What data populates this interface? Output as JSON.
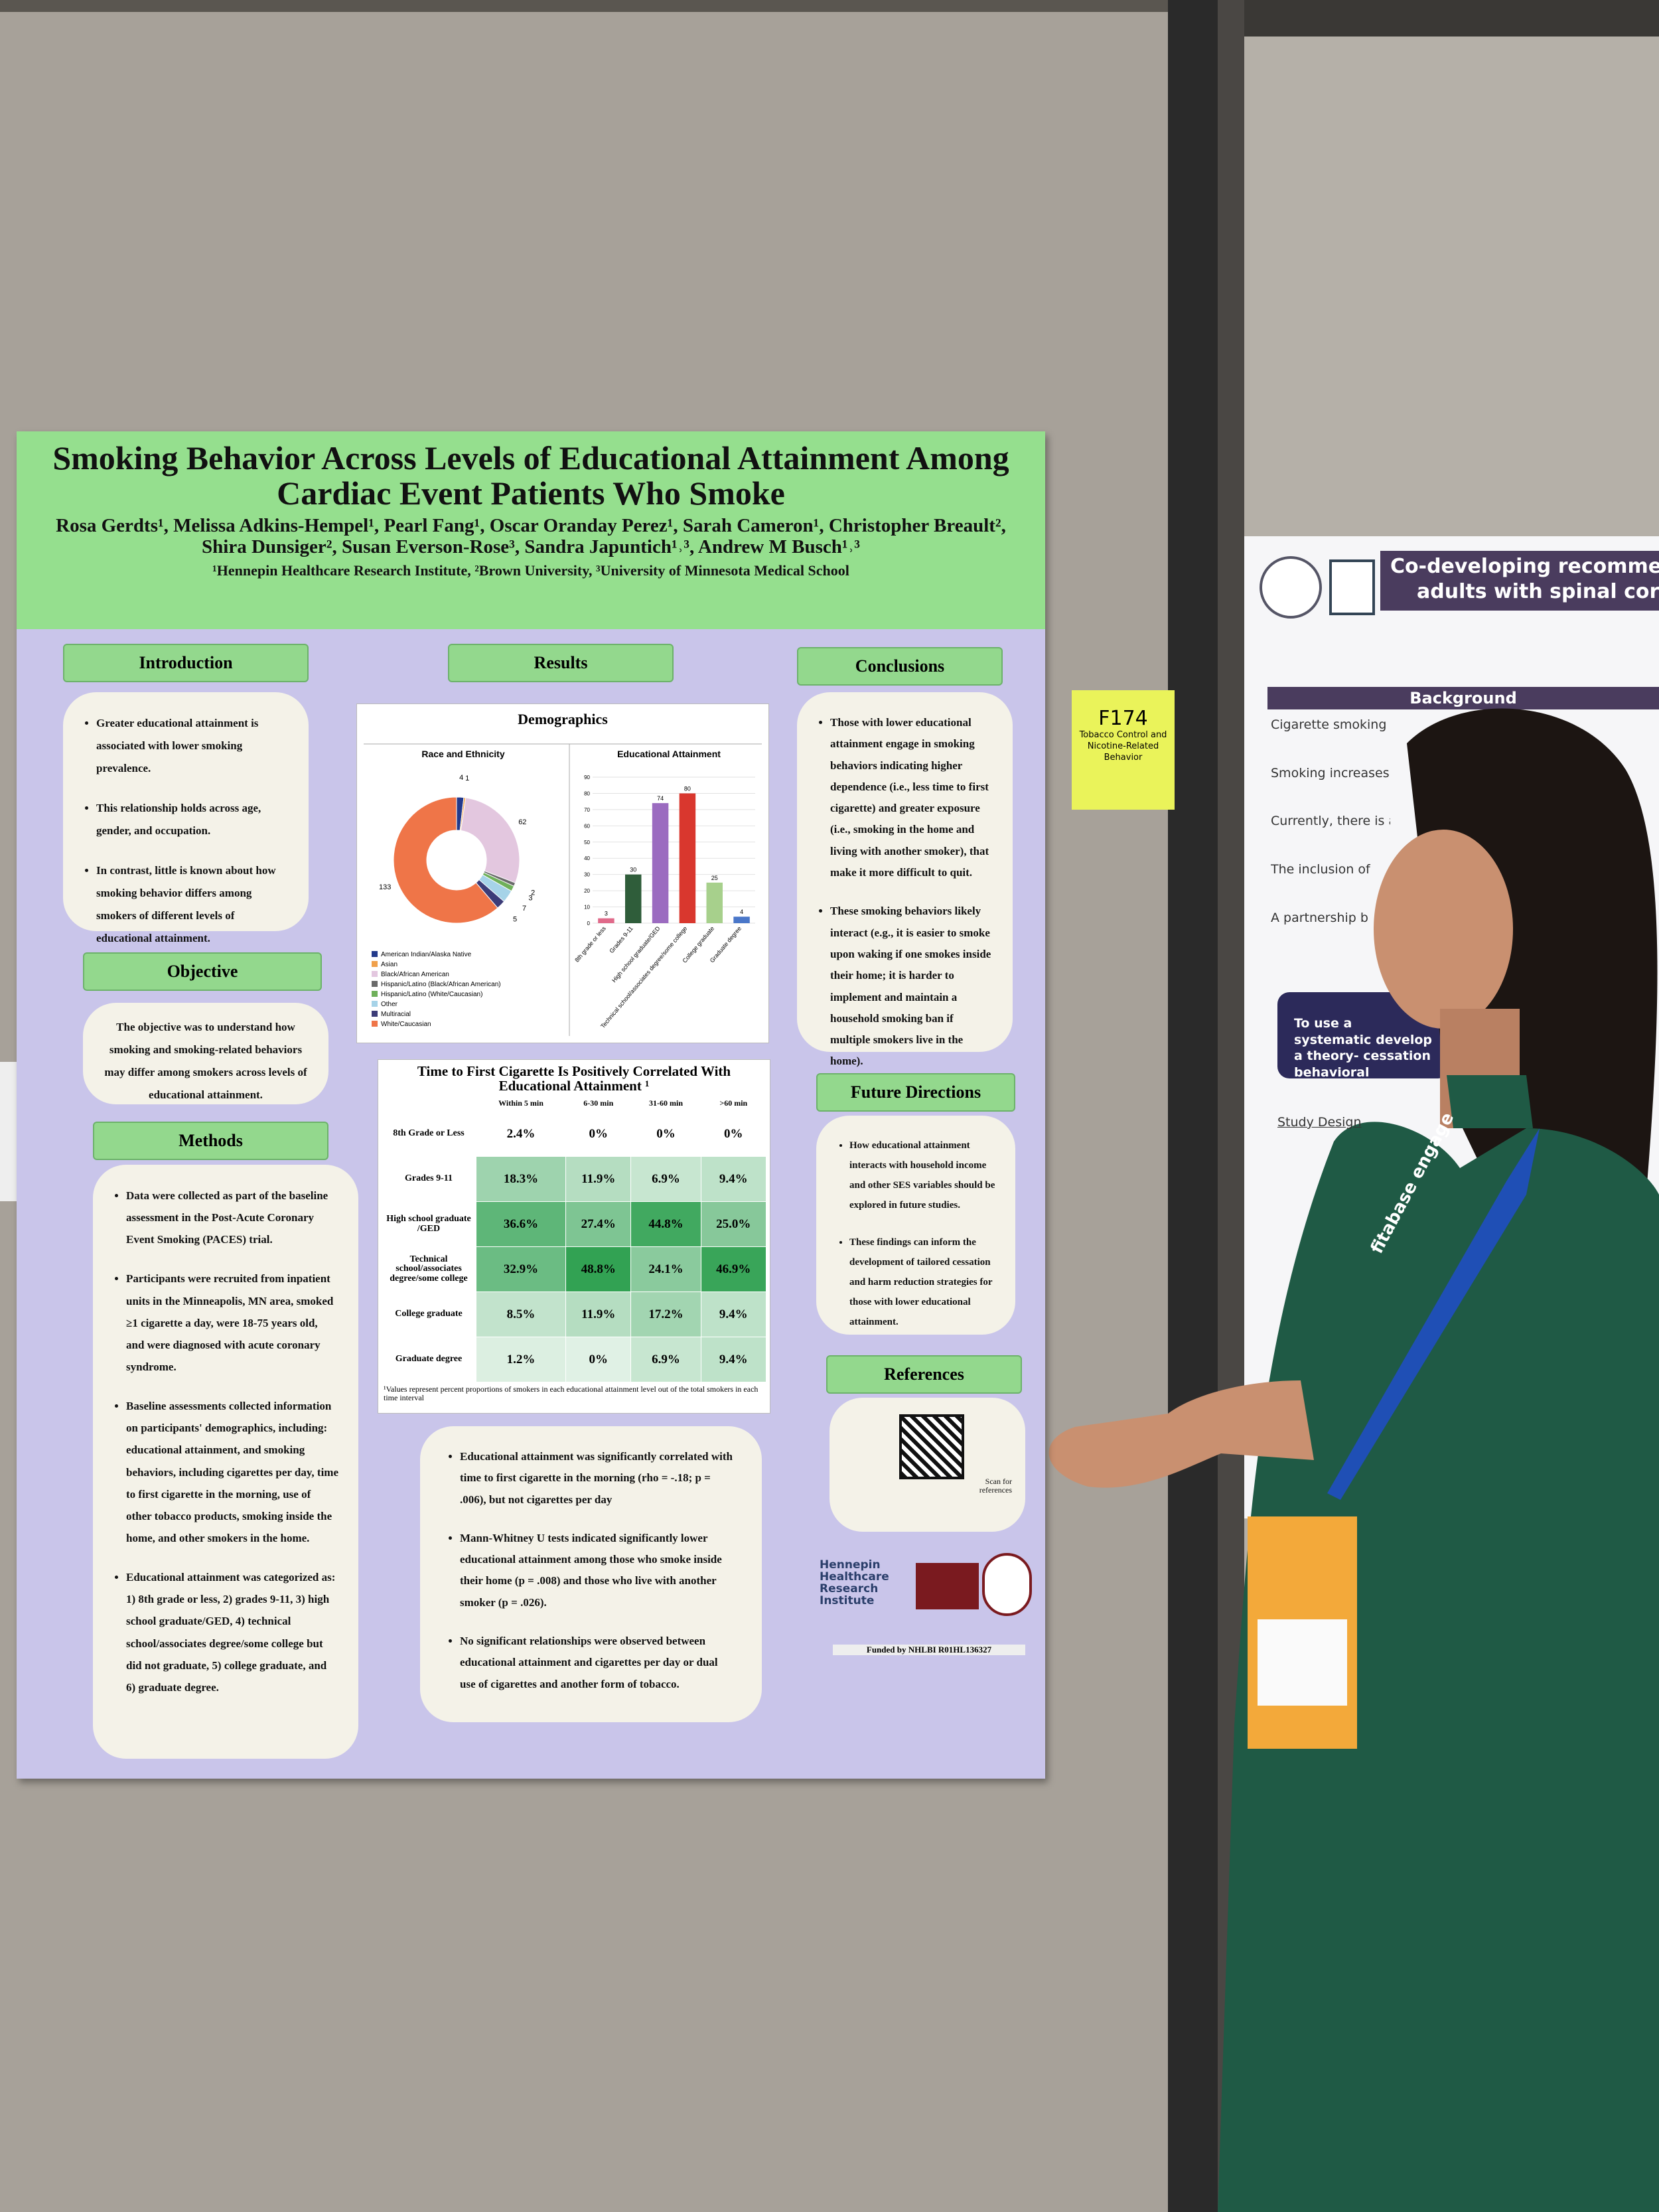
{
  "poster": {
    "title": "Smoking Behavior Across Levels of Educational Attainment Among Cardiac Event Patients Who Smoke",
    "authors": "Rosa Gerdts¹, Melissa Adkins-Hempel¹, Pearl Fang¹, Oscar Oranday Perez¹, Sarah Cameron¹, Christopher Breault², Shira Dunsiger², Susan Everson-Rose³, Sandra Japuntich¹˒³, Andrew M Busch¹˒³",
    "affiliations": "¹Hennepin Healthcare Research Institute, ²Brown University, ³University of Minnesota Medical School",
    "introduction": {
      "heading": "Introduction",
      "bullets": [
        "Greater educational attainment is associated with lower smoking prevalence.",
        "This relationship holds across age, gender, and occupation.",
        "In contrast, little is known about how smoking behavior differs among smokers of different levels of educational attainment."
      ]
    },
    "objective": {
      "heading": "Objective",
      "text": "The objective was to understand how smoking and smoking-related behaviors may differ among smokers across levels of educational attainment."
    },
    "methods": {
      "heading": "Methods",
      "bullets": [
        "Data were collected as part of the baseline assessment in the Post-Acute Coronary Event Smoking (PACES) trial.",
        "Participants were recruited from inpatient units in the Minneapolis, MN area, smoked ≥1 cigarette a day, were 18-75 years old, and were diagnosed with acute coronary syndrome.",
        "Baseline assessments collected information on participants' demographics, including: educational attainment, and smoking behaviors, including cigarettes per day, time to first cigarette in the morning, use of other tobacco products, smoking inside the home, and other smokers in the home.",
        "Educational attainment was categorized as: 1) 8th grade or less, 2) grades 9-11, 3) high school graduate/GED, 4) technical school/associates degree/some college but did not graduate, 5) college graduate, and 6) graduate degree."
      ]
    },
    "results": {
      "heading": "Results",
      "demographics": {
        "title": "Demographics",
        "race_chart": {
          "type": "pie",
          "title": "Race and Ethnicity",
          "categories": [
            "American Indian/Alaska Native",
            "Asian",
            "Black/African American",
            "Hispanic/Latino (Black/African American)",
            "Hispanic/Latino (White/Caucasian)",
            "Other",
            "Multiracial",
            "White/Caucasian"
          ],
          "values": [
            4,
            1,
            62,
            2,
            3,
            7,
            5,
            133
          ],
          "colors": [
            "#233a8b",
            "#f0a04b",
            "#e3c7df",
            "#6a6a6a",
            "#6fb05a",
            "#a6d3e8",
            "#3c3c78",
            "#ef7548"
          ]
        },
        "education_chart": {
          "type": "bar",
          "title": "Educational Attainment",
          "categories": [
            "8th grade or less",
            "Grades 9-11",
            "High school graduate/GED",
            "Technical school/associates degree/some college",
            "College graduate",
            "Graduate degree"
          ],
          "values": [
            3,
            30,
            74,
            80,
            25,
            4
          ],
          "colors": [
            "#e06a8a",
            "#2f5d3a",
            "#9b6bc0",
            "#d9372e",
            "#a7d08c",
            "#4a77c9"
          ],
          "ylim": [
            0,
            90
          ],
          "yticks": [
            0,
            10,
            20,
            30,
            40,
            50,
            60,
            70,
            80,
            90
          ],
          "grid": true
        }
      },
      "table": {
        "title": "Time to First Cigarette Is Positively Correlated With Educational Attainment ¹",
        "columns": [
          "Within 5 min",
          "6-30 min",
          "31-60 min",
          ">60 min"
        ],
        "rows": [
          {
            "label": "8th Grade or Less",
            "cells": [
              "2.4%",
              "0%",
              "0%",
              "0%"
            ]
          },
          {
            "label": "Grades 9-11",
            "cells": [
              "18.3%",
              "11.9%",
              "6.9%",
              "9.4%"
            ]
          },
          {
            "label": "High school graduate /GED",
            "cells": [
              "36.6%",
              "27.4%",
              "44.8%",
              "25.0%"
            ]
          },
          {
            "label": "Technical school/associates degree/some college",
            "cells": [
              "32.9%",
              "48.8%",
              "24.1%",
              "46.9%"
            ]
          },
          {
            "label": "College graduate",
            "cells": [
              "8.5%",
              "11.9%",
              "17.2%",
              "9.4%"
            ]
          },
          {
            "label": "Graduate degree",
            "cells": [
              "1.2%",
              "0%",
              "6.9%",
              "9.4%"
            ]
          }
        ],
        "footnote": "¹Values represent percent proportions of smokers in each educational attainment level out of the total smokers in each time interval"
      },
      "findings": [
        "Educational attainment was significantly correlated with time to first cigarette in the morning (rho = -.18; p = .006), but not cigarettes per day",
        "Mann-Whitney U tests indicated significantly lower educational attainment among those who smoke inside their home (p = .008) and those who live with another smoker (p = .026).",
        "No significant relationships were observed between educational attainment and cigarettes per day or dual use of cigarettes and another form of tobacco."
      ]
    },
    "conclusions": {
      "heading": "Conclusions",
      "bullets": [
        "Those with lower educational attainment engage in smoking behaviors indicating higher dependence (i.e., less time to first cigarette) and greater exposure (i.e., smoking in the home and living with another smoker), that make it more difficult to quit.",
        "These smoking behaviors likely interact (e.g., it is easier to smoke upon waking if one smokes inside their home; it is harder to implement and maintain a household smoking ban if multiple smokers live in the home)."
      ]
    },
    "future_directions": {
      "heading": "Future Directions",
      "bullets": [
        "How educational attainment interacts with household income and other SES variables should be explored in future studies.",
        "These findings can inform the development of tailored cessation and harm reduction strategies for those with lower educational attainment."
      ]
    },
    "references": {
      "heading": "References",
      "scan": "Scan for references"
    },
    "logo": "Hennepin Healthcare Research Institute",
    "funding": "Funded by NHLBI R01HL136327"
  },
  "sign": {
    "code": "F174",
    "topic": "Tobacco Control and Nicotine-Related Behavior"
  },
  "neighbor_poster": {
    "title": "Co-developing recommendati",
    "subtitle": "adults with spinal cord injur",
    "section": "Background",
    "bullets": [
      "Cigarette smoking prevalence in persons with spinal cord i",
      "Smoking increases risk of resp",
      "Currently, there is a l",
      "The inclusion of",
      "A partnership b"
    ],
    "callout": "To use a systematic develop a theory- cessation behavioral",
    "design": "Study Design"
  },
  "lanyard": "fitabase engage"
}
